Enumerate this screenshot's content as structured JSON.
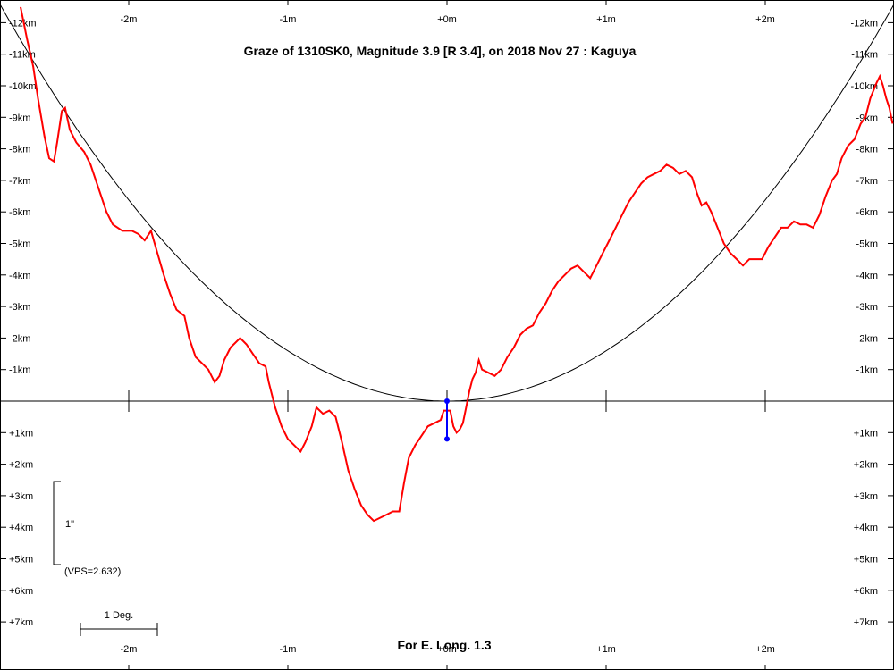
{
  "chart_data": {
    "type": "line",
    "title": "Graze of  1310SK0,  Magnitude 3.9 [R 3.4],  on 2018 Nov 27  :  Kaguya",
    "footer": "For E. Long. 1.3",
    "x_unit": "m",
    "y_unit": "km",
    "x_range": [
      -2.8,
      2.8
    ],
    "y_range": [
      -12.5,
      8.5
    ],
    "x_ticks": [
      {
        "value": -2,
        "label": "-2m"
      },
      {
        "value": -1,
        "label": "-1m"
      },
      {
        "value": 0,
        "label": "+0m"
      },
      {
        "value": 1,
        "label": "+1m"
      },
      {
        "value": 2,
        "label": "+2m"
      }
    ],
    "y_ticks_upper": [
      {
        "value": -12,
        "label": "-12km"
      },
      {
        "value": -11,
        "label": "-11km"
      },
      {
        "value": -10,
        "label": "-10km"
      },
      {
        "value": -9,
        "label": "-9km"
      },
      {
        "value": -8,
        "label": "-8km"
      },
      {
        "value": -7,
        "label": "-7km"
      },
      {
        "value": -6,
        "label": "-6km"
      },
      {
        "value": -5,
        "label": "-5km"
      },
      {
        "value": -4,
        "label": "-4km"
      },
      {
        "value": -3,
        "label": "-3km"
      },
      {
        "value": -2,
        "label": "-2km"
      },
      {
        "value": -1,
        "label": "-1km"
      }
    ],
    "y_ticks_lower": [
      {
        "value": 1,
        "label": "+1km"
      },
      {
        "value": 2,
        "label": "+2km"
      },
      {
        "value": 3,
        "label": "+3km"
      },
      {
        "value": 4,
        "label": "+4km"
      },
      {
        "value": 5,
        "label": "+5km"
      },
      {
        "value": 6,
        "label": "+6km"
      },
      {
        "value": 7,
        "label": "+7km"
      }
    ],
    "scale_bar_label": "1\"",
    "vps_label": "(VPS=2.632)",
    "deg_label": "1 Deg.",
    "limb_profile": {
      "color": "#ff0000",
      "points": [
        [
          -2.68,
          -12.5
        ],
        [
          -2.64,
          -11.5
        ],
        [
          -2.6,
          -10.6
        ],
        [
          -2.57,
          -9.6
        ],
        [
          -2.53,
          -8.4
        ],
        [
          -2.5,
          -7.7
        ],
        [
          -2.47,
          -7.6
        ],
        [
          -2.45,
          -8.2
        ],
        [
          -2.42,
          -9.2
        ],
        [
          -2.4,
          -9.3
        ],
        [
          -2.37,
          -8.6
        ],
        [
          -2.33,
          -8.2
        ],
        [
          -2.28,
          -7.9
        ],
        [
          -2.24,
          -7.5
        ],
        [
          -2.2,
          -6.9
        ],
        [
          -2.14,
          -6.0
        ],
        [
          -2.1,
          -5.6
        ],
        [
          -2.04,
          -5.4
        ],
        [
          -1.98,
          -5.4
        ],
        [
          -1.94,
          -5.3
        ],
        [
          -1.9,
          -5.1
        ],
        [
          -1.86,
          -5.4
        ],
        [
          -1.82,
          -4.7
        ],
        [
          -1.78,
          -4.0
        ],
        [
          -1.74,
          -3.4
        ],
        [
          -1.7,
          -2.9
        ],
        [
          -1.65,
          -2.7
        ],
        [
          -1.62,
          -2.0
        ],
        [
          -1.58,
          -1.4
        ],
        [
          -1.54,
          -1.2
        ],
        [
          -1.5,
          -1.0
        ],
        [
          -1.46,
          -0.6
        ],
        [
          -1.43,
          -0.8
        ],
        [
          -1.4,
          -1.3
        ],
        [
          -1.36,
          -1.7
        ],
        [
          -1.3,
          -2.0
        ],
        [
          -1.26,
          -1.8
        ],
        [
          -1.22,
          -1.5
        ],
        [
          -1.18,
          -1.2
        ],
        [
          -1.14,
          -1.1
        ],
        [
          -1.12,
          -0.6
        ],
        [
          -1.08,
          0.2
        ],
        [
          -1.04,
          0.8
        ],
        [
          -1.0,
          1.2
        ],
        [
          -0.96,
          1.4
        ],
        [
          -0.92,
          1.6
        ],
        [
          -0.89,
          1.3
        ],
        [
          -0.85,
          0.8
        ],
        [
          -0.82,
          0.2
        ],
        [
          -0.78,
          0.4
        ],
        [
          -0.74,
          0.3
        ],
        [
          -0.7,
          0.5
        ],
        [
          -0.66,
          1.3
        ],
        [
          -0.62,
          2.2
        ],
        [
          -0.58,
          2.8
        ],
        [
          -0.54,
          3.3
        ],
        [
          -0.5,
          3.6
        ],
        [
          -0.46,
          3.8
        ],
        [
          -0.42,
          3.7
        ],
        [
          -0.38,
          3.6
        ],
        [
          -0.34,
          3.5
        ],
        [
          -0.3,
          3.5
        ],
        [
          -0.27,
          2.6
        ],
        [
          -0.24,
          1.8
        ],
        [
          -0.2,
          1.4
        ],
        [
          -0.16,
          1.1
        ],
        [
          -0.12,
          0.8
        ],
        [
          -0.08,
          0.7
        ],
        [
          -0.04,
          0.6
        ],
        [
          -0.02,
          0.3
        ],
        [
          0.02,
          0.3
        ],
        [
          0.04,
          0.8
        ],
        [
          0.06,
          1.0
        ],
        [
          0.08,
          0.9
        ],
        [
          0.1,
          0.7
        ],
        [
          0.12,
          0.2
        ],
        [
          0.14,
          -0.3
        ],
        [
          0.16,
          -0.7
        ],
        [
          0.18,
          -0.9
        ],
        [
          0.2,
          -1.3
        ],
        [
          0.22,
          -1.0
        ],
        [
          0.26,
          -0.9
        ],
        [
          0.3,
          -0.8
        ],
        [
          0.34,
          -1.0
        ],
        [
          0.38,
          -1.4
        ],
        [
          0.42,
          -1.7
        ],
        [
          0.46,
          -2.1
        ],
        [
          0.5,
          -2.3
        ],
        [
          0.54,
          -2.4
        ],
        [
          0.58,
          -2.8
        ],
        [
          0.62,
          -3.1
        ],
        [
          0.66,
          -3.5
        ],
        [
          0.7,
          -3.8
        ],
        [
          0.74,
          -4.0
        ],
        [
          0.78,
          -4.2
        ],
        [
          0.82,
          -4.3
        ],
        [
          0.86,
          -4.1
        ],
        [
          0.9,
          -3.9
        ],
        [
          0.94,
          -4.3
        ],
        [
          0.98,
          -4.7
        ],
        [
          1.02,
          -5.1
        ],
        [
          1.06,
          -5.5
        ],
        [
          1.1,
          -5.9
        ],
        [
          1.14,
          -6.3
        ],
        [
          1.18,
          -6.6
        ],
        [
          1.22,
          -6.9
        ],
        [
          1.26,
          -7.1
        ],
        [
          1.3,
          -7.2
        ],
        [
          1.34,
          -7.3
        ],
        [
          1.38,
          -7.5
        ],
        [
          1.42,
          -7.4
        ],
        [
          1.46,
          -7.2
        ],
        [
          1.5,
          -7.3
        ],
        [
          1.54,
          -7.1
        ],
        [
          1.57,
          -6.6
        ],
        [
          1.6,
          -6.2
        ],
        [
          1.63,
          -6.3
        ],
        [
          1.66,
          -6.0
        ],
        [
          1.7,
          -5.5
        ],
        [
          1.74,
          -5.0
        ],
        [
          1.78,
          -4.7
        ],
        [
          1.82,
          -4.5
        ],
        [
          1.86,
          -4.3
        ],
        [
          1.9,
          -4.5
        ],
        [
          1.94,
          -4.5
        ],
        [
          1.98,
          -4.5
        ],
        [
          2.02,
          -4.9
        ],
        [
          2.06,
          -5.2
        ],
        [
          2.1,
          -5.5
        ],
        [
          2.14,
          -5.5
        ],
        [
          2.18,
          -5.7
        ],
        [
          2.22,
          -5.6
        ],
        [
          2.26,
          -5.6
        ],
        [
          2.3,
          -5.5
        ],
        [
          2.34,
          -5.9
        ],
        [
          2.38,
          -6.5
        ],
        [
          2.42,
          -7.0
        ],
        [
          2.45,
          -7.2
        ],
        [
          2.48,
          -7.7
        ],
        [
          2.52,
          -8.1
        ],
        [
          2.56,
          -8.3
        ],
        [
          2.6,
          -8.8
        ],
        [
          2.63,
          -9.0
        ],
        [
          2.66,
          -9.6
        ],
        [
          2.7,
          -10.1
        ],
        [
          2.72,
          -10.3
        ],
        [
          2.74,
          -10.0
        ],
        [
          2.76,
          -9.6
        ],
        [
          2.78,
          -9.3
        ],
        [
          2.8,
          -8.8
        ]
      ]
    },
    "reference_curve": {
      "color": "#000000",
      "vertex": [
        0,
        0
      ],
      "coeff_km_per_m2": -1.595
    },
    "star_marker": {
      "color": "#0000ff",
      "x": 0,
      "y_top": 0,
      "y_bottom": 1.2
    }
  }
}
